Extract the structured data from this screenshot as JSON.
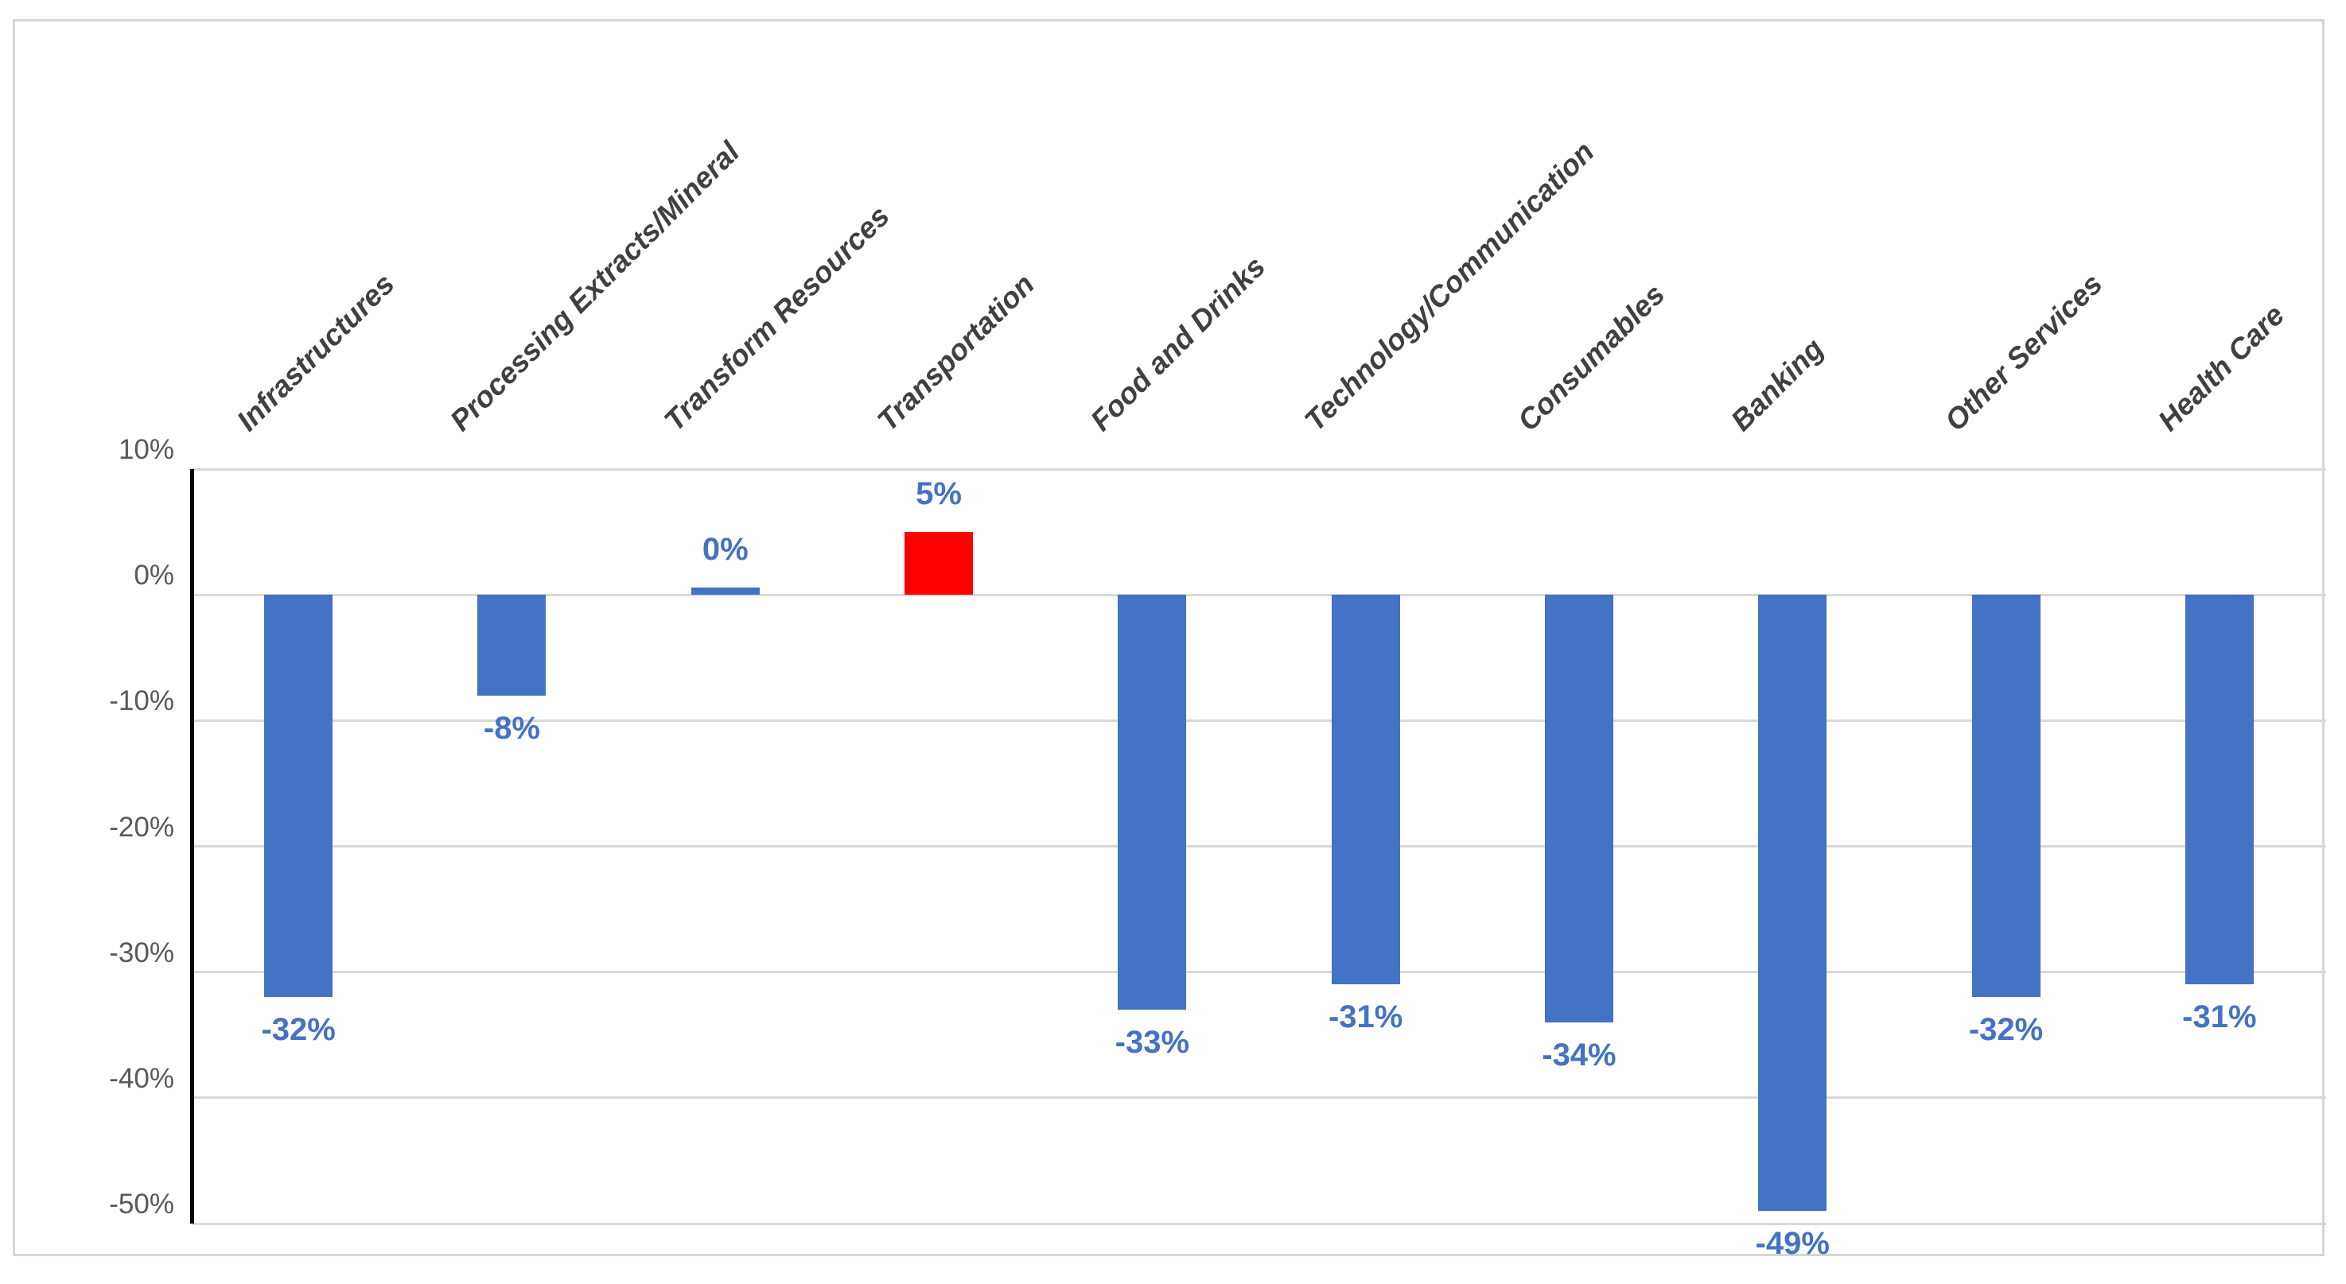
{
  "chart_data": {
    "type": "bar",
    "title": "",
    "xlabel": "",
    "ylabel": "",
    "grid": true,
    "legend": "none",
    "ylim": [
      -50,
      10
    ],
    "categories": [
      "Infrastructures",
      "Processing Extracts/Mineral",
      "Transform Resources",
      "Transportation",
      "Food and Drinks",
      "Technology/Communication",
      "Consumables",
      "Banking",
      "Other Services",
      "Health Care"
    ],
    "values": [
      -32,
      -8,
      0,
      5,
      -33,
      -31,
      -34,
      -49,
      -32,
      -31
    ],
    "data_labels": [
      "-32%",
      "-8%",
      "0%",
      "5%",
      "-33%",
      "-31%",
      "-34%",
      "-49%",
      "-32%",
      "-31%"
    ],
    "bar_colors": [
      "#4472c4",
      "#4472c4",
      "#4472c4",
      "#ff0000",
      "#4472c4",
      "#4472c4",
      "#4472c4",
      "#4472c4",
      "#4472c4",
      "#4472c4"
    ],
    "y_ticks": [
      {
        "value": 10,
        "label": "10%"
      },
      {
        "value": 0,
        "label": "0%"
      },
      {
        "value": -10,
        "label": "-10%"
      },
      {
        "value": -20,
        "label": "-20%"
      },
      {
        "value": -30,
        "label": "-30%"
      },
      {
        "value": -40,
        "label": "-40%"
      },
      {
        "value": -50,
        "label": "-50%"
      }
    ]
  },
  "colors": {
    "bar_blue": "#4472c4",
    "bar_red": "#ff0000",
    "data_label_text": "#4472c4",
    "axis_tick_text": "#595959",
    "category_text": "#404040",
    "gridline": "#d9d9d9",
    "axis_line": "#000000",
    "frame_border": "#d6d6d6",
    "background": "#ffffff"
  }
}
